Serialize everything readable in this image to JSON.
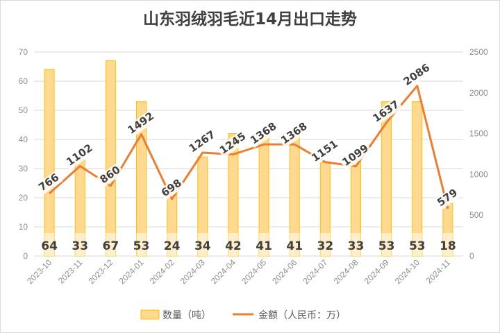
{
  "chart_data": {
    "type": "bar+line",
    "title": "山东羽绒羽毛近14月出口走势",
    "categories": [
      "2023-10",
      "2023-11",
      "2023-12",
      "2024-01",
      "2024-02",
      "2024-03",
      "2024-04",
      "2024-05",
      "2024-06",
      "2024-07",
      "2024-08",
      "2024-09",
      "2024-10",
      "2024-11"
    ],
    "series": [
      {
        "name": "数量（吨）",
        "type": "bar",
        "axis": "left",
        "values": [
          64,
          33,
          67,
          53,
          24,
          34,
          42,
          41,
          41,
          32,
          33,
          53,
          53,
          18
        ],
        "color": "#ffd98f",
        "border": "#ffc000"
      },
      {
        "name": "金额（人民币：万）",
        "type": "line",
        "axis": "right",
        "values": [
          766,
          1102,
          860,
          1492,
          698,
          1267,
          1245,
          1368,
          1368,
          1151,
          1099,
          1637,
          2086,
          579
        ],
        "color": "#ed7d31"
      }
    ],
    "ylim_left": [
      0,
      70
    ],
    "yticks_left": [
      0,
      10,
      20,
      30,
      40,
      50,
      60,
      70
    ],
    "ylim_right": [
      0,
      2500
    ],
    "yticks_right": [
      0,
      500,
      1000,
      1500,
      2000,
      2500
    ],
    "grid": true,
    "legend": "bottom"
  }
}
